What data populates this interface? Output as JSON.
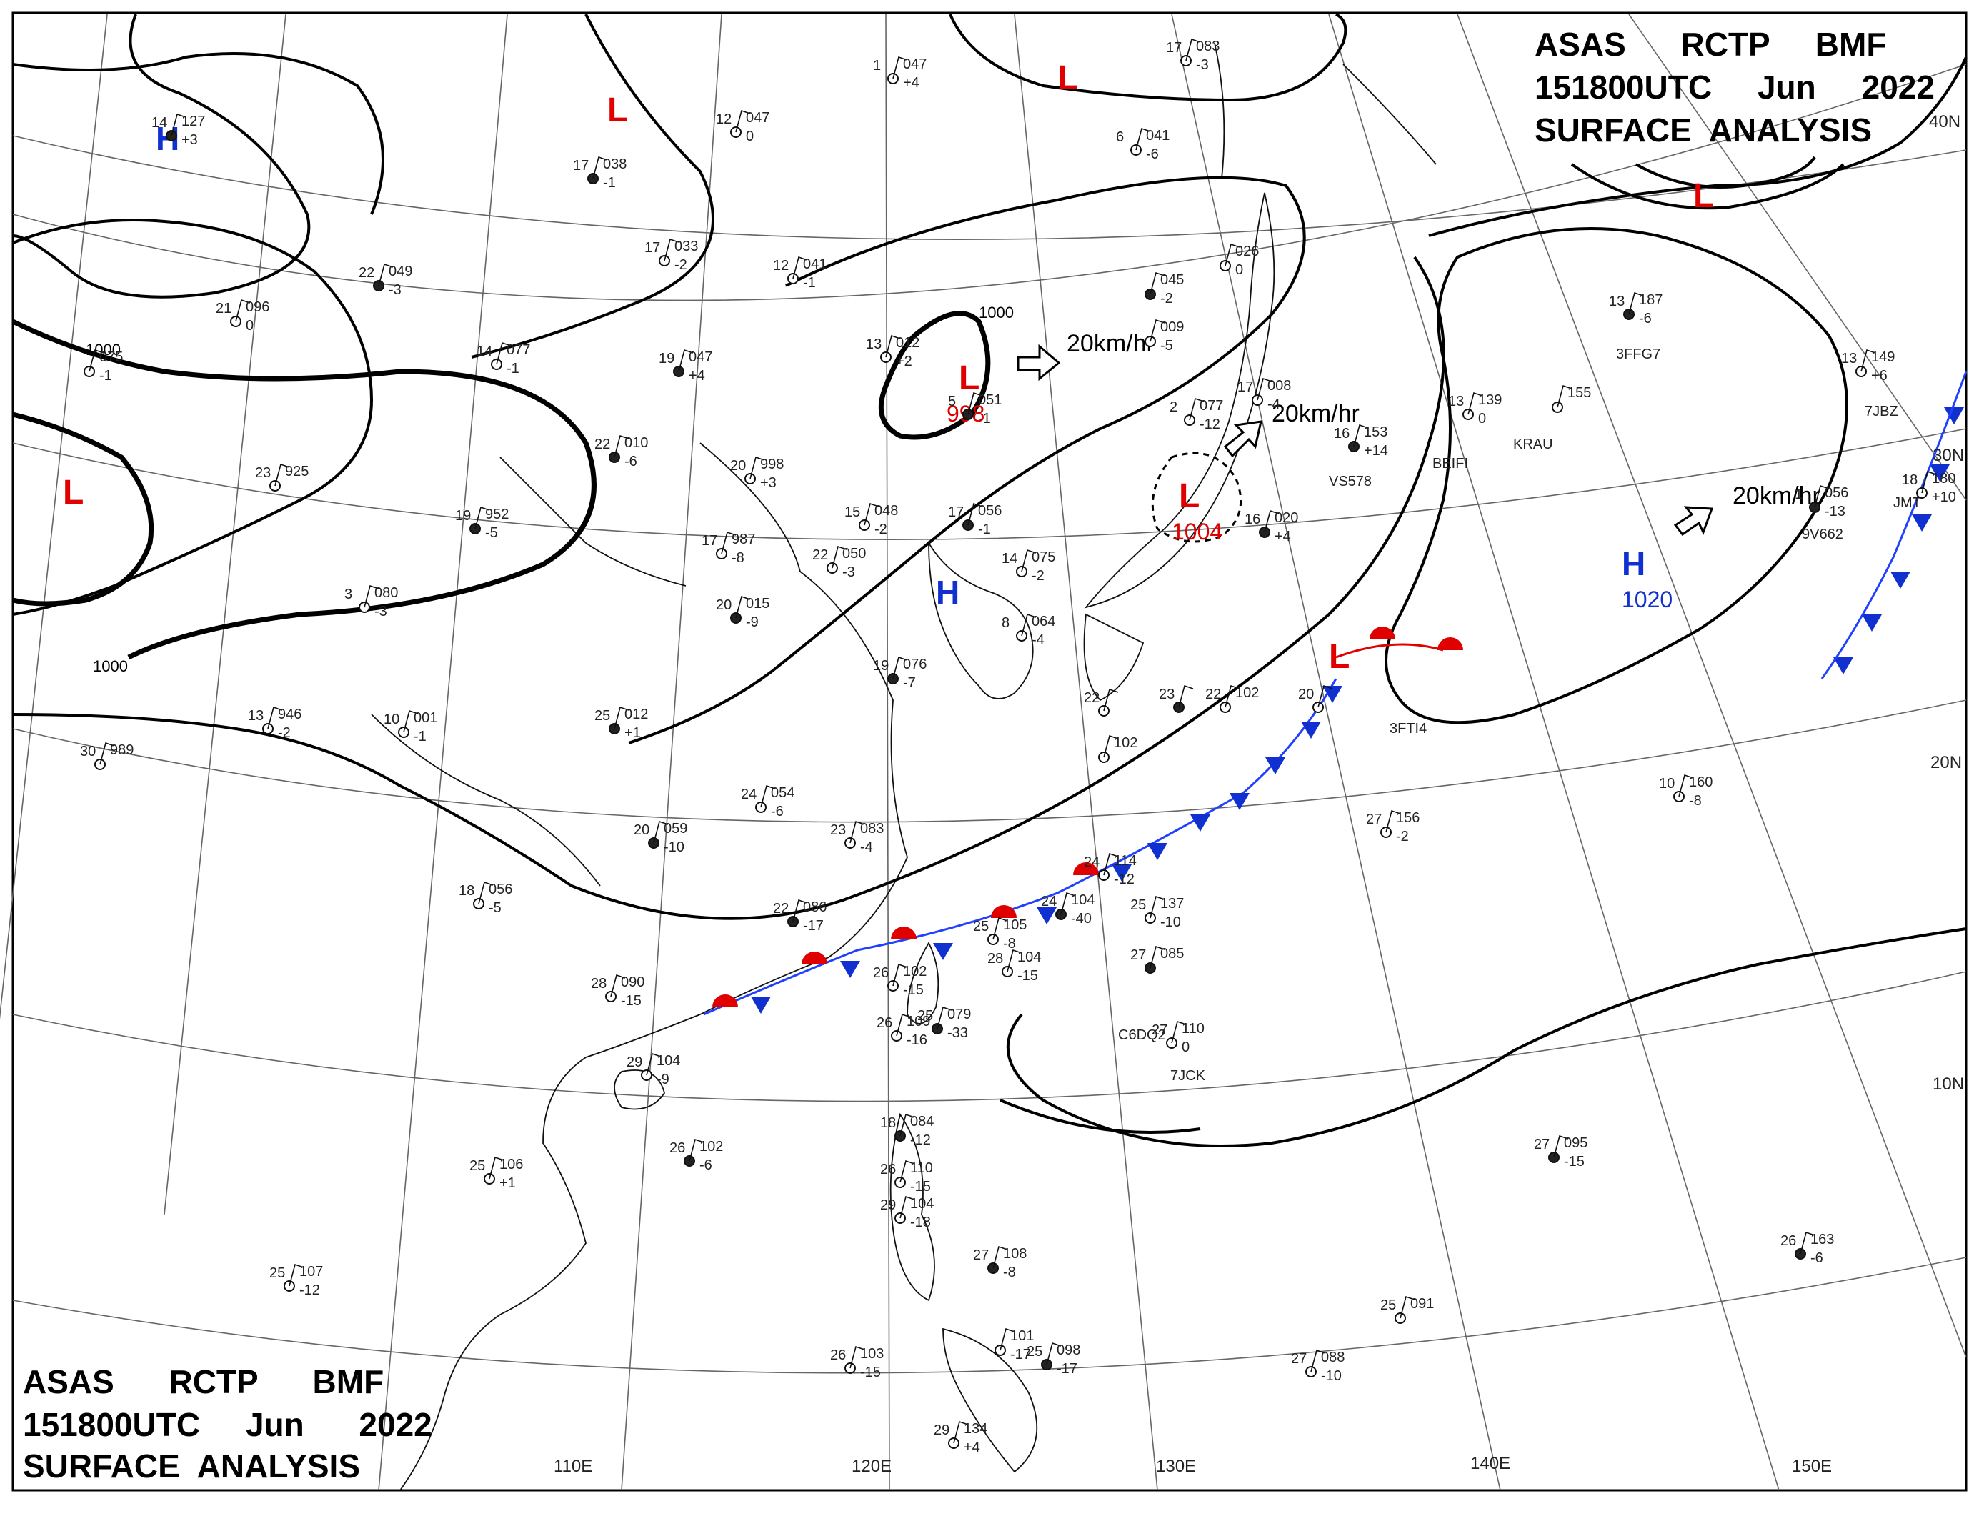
{
  "header": {
    "top_right": [
      "ASAS      RCTP     BMF",
      "151800UTC     Jun     2022",
      "SURFACE  ANALYSIS"
    ],
    "bottom_left": [
      "ASAS      RCTP      BMF",
      "151800UTC     Jun      2022",
      "SURFACE  ANALYSIS"
    ]
  },
  "longitude_labels": [
    "110E",
    "120E",
    "130E",
    "140E",
    "150E"
  ],
  "latitude_labels": [
    "40N",
    "30N",
    "20N",
    "10N"
  ],
  "isobar_labels": [
    "1000",
    "1000",
    "1000"
  ],
  "pressure_systems": [
    {
      "type": "L",
      "color": "#e00000"
    },
    {
      "type": "L",
      "color": "#e00000"
    },
    {
      "type": "L",
      "color": "#e00000"
    },
    {
      "type": "L",
      "color": "#e00000",
      "value": "998"
    },
    {
      "type": "L",
      "color": "#e00000",
      "value": "1004"
    },
    {
      "type": "L",
      "color": "#e00000"
    },
    {
      "type": "L",
      "color": "#e00000"
    },
    {
      "type": "H",
      "color": "#1030d0"
    },
    {
      "type": "H",
      "color": "#1030d0"
    },
    {
      "type": "H",
      "color": "#1030d0",
      "value": "1020"
    }
  ],
  "movement_labels": [
    "20km/hr",
    "20km/hr",
    "20km/hr"
  ],
  "ship_callsigns": [
    "3FFG7",
    "KRAU",
    "BEIFI",
    "VS578",
    "7JBZ",
    "JMT",
    "9V662",
    "3FTI4",
    "C6DQ2",
    "7JCK"
  ],
  "stations": [
    {
      "t": "14",
      "p": "127",
      "d": "+3"
    },
    {
      "t": "1",
      "p": "047",
      "d": "+4"
    },
    {
      "t": "12",
      "p": "047",
      "d": "0"
    },
    {
      "t": "17",
      "p": "038",
      "d": "-1"
    },
    {
      "t": "17",
      "p": "033",
      "d": "-2"
    },
    {
      "t": "12",
      "p": "041",
      "d": "-1"
    },
    {
      "t": "22",
      "p": "049",
      "d": "-3"
    },
    {
      "t": "21",
      "p": "096",
      "d": "0"
    },
    {
      "t": "14",
      "p": "077",
      "d": "-1"
    },
    {
      "t": "19",
      "p": "047",
      "d": "+4"
    },
    {
      "t": "13",
      "p": "012",
      "d": "+2"
    },
    {
      "t": "",
      "p": "075",
      "d": "-1"
    },
    {
      "t": "22",
      "p": "010",
      "d": "-6"
    },
    {
      "t": "23",
      "p": "925",
      "d": ""
    },
    {
      "t": "20",
      "p": "998",
      "d": "+3"
    },
    {
      "t": "19",
      "p": "952",
      "d": "-5"
    },
    {
      "t": "17",
      "p": "987",
      "d": "-8"
    },
    {
      "t": "15",
      "p": "048",
      "d": "-2"
    },
    {
      "t": "17",
      "p": "056",
      "d": "-1"
    },
    {
      "t": "22",
      "p": "050",
      "d": "-3"
    },
    {
      "t": "3",
      "p": "080",
      "d": "-3"
    },
    {
      "t": "20",
      "p": "015",
      "d": "-9"
    },
    {
      "t": "14",
      "p": "075",
      "d": "-2"
    },
    {
      "t": "8",
      "p": "064",
      "d": "-4"
    },
    {
      "t": "19",
      "p": "076",
      "d": "-7"
    },
    {
      "t": "13",
      "p": "946",
      "d": "-2"
    },
    {
      "t": "10",
      "p": "001",
      "d": "-1"
    },
    {
      "t": "25",
      "p": "012",
      "d": "+1"
    },
    {
      "t": "30",
      "p": "989",
      "d": ""
    },
    {
      "t": "24",
      "p": "054",
      "d": "-6"
    },
    {
      "t": "20",
      "p": "059",
      "d": "-10"
    },
    {
      "t": "23",
      "p": "083",
      "d": "-4"
    },
    {
      "t": "18",
      "p": "056",
      "d": "-5"
    },
    {
      "t": "22",
      "p": "086",
      "d": "-17"
    },
    {
      "t": "25",
      "p": "105",
      "d": "-8"
    },
    {
      "t": "28",
      "p": "104",
      "d": "-15"
    },
    {
      "t": "24",
      "p": "104",
      "d": "-40"
    },
    {
      "t": "24",
      "p": "114",
      "d": "-12"
    },
    {
      "t": "25",
      "p": "137",
      "d": "-10"
    },
    {
      "t": "27",
      "p": "085",
      "d": ""
    },
    {
      "t": "26",
      "p": "102",
      "d": "-15"
    },
    {
      "t": "26",
      "p": "109",
      "d": "-16"
    },
    {
      "t": "25",
      "p": "079",
      "d": "-33"
    },
    {
      "t": "28",
      "p": "090",
      "d": "-15"
    },
    {
      "t": "29",
      "p": "104",
      "d": "-9"
    },
    {
      "t": "26",
      "p": "102",
      "d": "-6"
    },
    {
      "t": "25",
      "p": "106",
      "d": "+1"
    },
    {
      "t": "25",
      "p": "107",
      "d": "-12"
    },
    {
      "t": "18",
      "p": "084",
      "d": "-12"
    },
    {
      "t": "26",
      "p": "110",
      "d": "-15"
    },
    {
      "t": "29",
      "p": "104",
      "d": "-18"
    },
    {
      "t": "27",
      "p": "108",
      "d": "-8"
    },
    {
      "t": "26",
      "p": "103",
      "d": "-15"
    },
    {
      "t": "",
      "p": "101",
      "d": "-17"
    },
    {
      "t": "25",
      "p": "098",
      "d": "-17"
    },
    {
      "t": "29",
      "p": "134",
      "d": "+4"
    },
    {
      "t": "27",
      "p": "110",
      "d": "0"
    },
    {
      "t": "27",
      "p": "095",
      "d": "-15"
    },
    {
      "t": "25",
      "p": "091",
      "d": ""
    },
    {
      "t": "27",
      "p": "088",
      "d": "-10"
    },
    {
      "t": "26",
      "p": "163",
      "d": "-6"
    },
    {
      "t": "27",
      "p": "156",
      "d": "-2"
    },
    {
      "t": "10",
      "p": "160",
      "d": "-8"
    },
    {
      "t": "13",
      "p": "187",
      "d": "-6"
    },
    {
      "t": "",
      "p": "155",
      "d": ""
    },
    {
      "t": "13",
      "p": "139",
      "d": "0"
    },
    {
      "t": "16",
      "p": "153",
      "d": "+14"
    },
    {
      "t": "13",
      "p": "149",
      "d": "+6"
    },
    {
      "t": "18",
      "p": "180",
      "d": "+10"
    },
    {
      "t": "1",
      "p": "056",
      "d": "-13"
    },
    {
      "t": "2",
      "p": "077",
      "d": "-12"
    },
    {
      "t": "17",
      "p": "008",
      "d": "-4"
    },
    {
      "t": "",
      "p": "045",
      "d": "-2"
    },
    {
      "t": "",
      "p": "026",
      "d": "0"
    },
    {
      "t": "",
      "p": "009",
      "d": "-5"
    },
    {
      "t": "5",
      "p": "051",
      "d": "-1"
    },
    {
      "t": "6",
      "p": "041",
      "d": "-6"
    },
    {
      "t": "17",
      "p": "083",
      "d": "-3"
    },
    {
      "t": "16",
      "p": "020",
      "d": "+4"
    },
    {
      "t": "22",
      "p": "102",
      "d": ""
    },
    {
      "t": "20",
      "p": "",
      "d": ""
    },
    {
      "t": "23",
      "p": "",
      "d": ""
    },
    {
      "t": "22",
      "p": "",
      "d": ""
    },
    {
      "t": "",
      "p": "102",
      "d": ""
    }
  ]
}
